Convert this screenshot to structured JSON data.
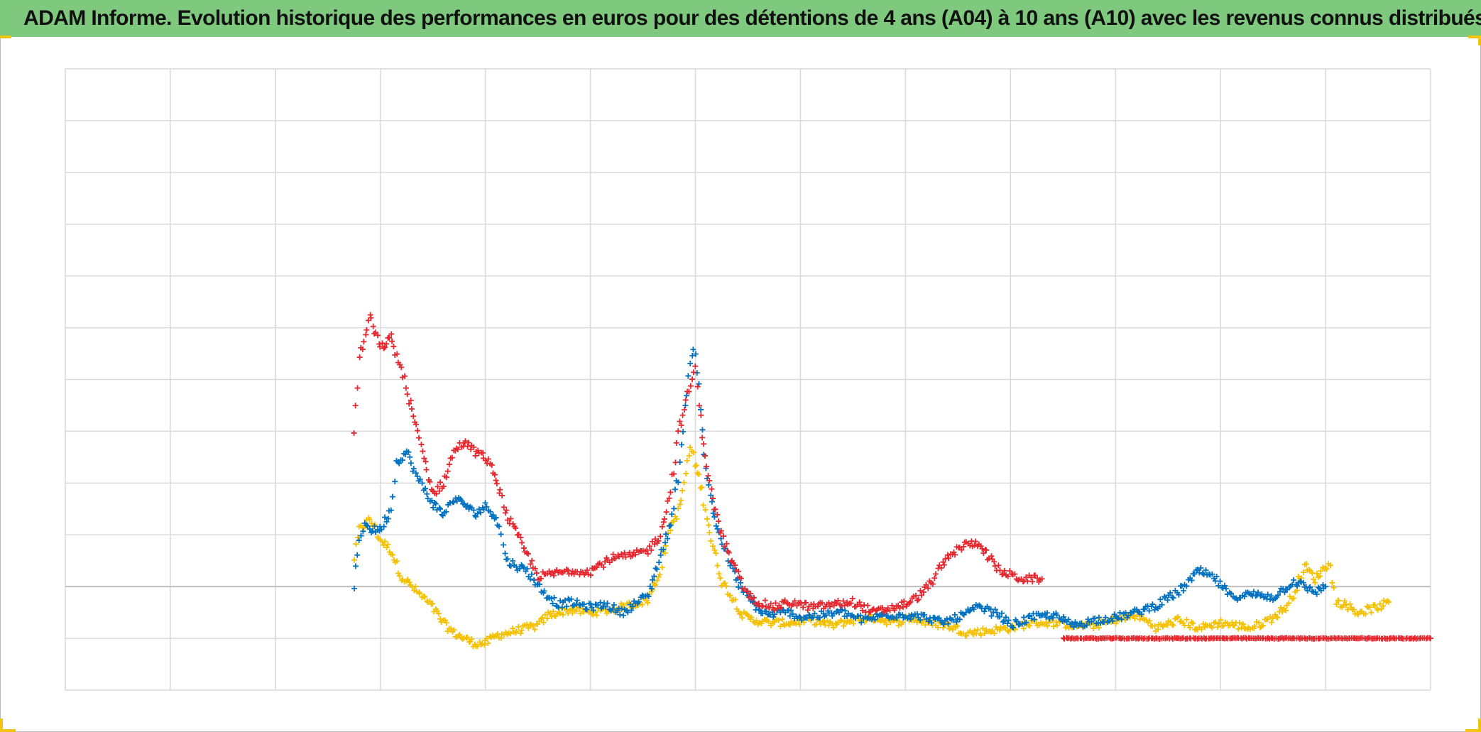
{
  "title": "ADAM Informe. Evolution historique des performances en euros pour des détentions de 4 ans (A04) à 10 ans (A10) avec les revenus connus distribués",
  "colors": {
    "title_bar": "#7fc97f",
    "grid": "#d9d9d9",
    "zero_line": "#bfbfbf",
    "handles": "#f1c40f"
  },
  "chart_data": {
    "type": "scatter",
    "marker": "plus",
    "title": "ADAM Informe. Evolution historique des performances en euros pour des détentions de 4 ans (A04) à 10 ans (A10) avec les revenus connus distribués",
    "xlabel": "",
    "ylabel": "",
    "tick_labels_visible": false,
    "xlim": [
      0,
      13
    ],
    "ylim": [
      -2,
      10
    ],
    "x_gridlines": 13,
    "y_gridlines": 12,
    "grid": true,
    "zero_line_y": 0,
    "legend": "none",
    "series": [
      {
        "color": "#f5c000",
        "points": [
          [
            2.75,
            0.55
          ],
          [
            2.8,
            1.1
          ],
          [
            2.9,
            1.3
          ],
          [
            3.0,
            0.9
          ],
          [
            3.1,
            0.7
          ],
          [
            3.2,
            0.2
          ],
          [
            3.35,
            -0.1
          ],
          [
            3.5,
            -0.4
          ],
          [
            3.6,
            -0.7
          ],
          [
            3.7,
            -0.9
          ],
          [
            3.8,
            -1.0
          ],
          [
            3.9,
            -1.1
          ],
          [
            4.0,
            -1.1
          ],
          [
            4.1,
            -0.95
          ],
          [
            4.3,
            -0.85
          ],
          [
            4.5,
            -0.75
          ],
          [
            4.6,
            -0.55
          ],
          [
            4.7,
            -0.5
          ],
          [
            4.8,
            -0.45
          ],
          [
            5.0,
            -0.5
          ],
          [
            5.2,
            -0.45
          ],
          [
            5.4,
            -0.35
          ],
          [
            5.55,
            -0.25
          ],
          [
            5.65,
            0.2
          ],
          [
            5.75,
            1.1
          ],
          [
            5.85,
            1.5
          ],
          [
            5.95,
            2.7
          ],
          [
            6.05,
            2.0
          ],
          [
            6.15,
            0.9
          ],
          [
            6.25,
            0.1
          ],
          [
            6.35,
            -0.2
          ],
          [
            6.45,
            -0.55
          ],
          [
            6.55,
            -0.65
          ],
          [
            6.7,
            -0.7
          ],
          [
            6.9,
            -0.7
          ],
          [
            7.1,
            -0.65
          ],
          [
            7.3,
            -0.75
          ],
          [
            7.5,
            -0.65
          ],
          [
            7.7,
            -0.6
          ],
          [
            7.9,
            -0.7
          ],
          [
            8.05,
            -0.6
          ],
          [
            8.2,
            -0.7
          ],
          [
            8.4,
            -0.75
          ],
          [
            8.6,
            -0.9
          ],
          [
            8.8,
            -0.85
          ],
          [
            9.0,
            -0.8
          ],
          [
            9.2,
            -0.7
          ],
          [
            9.4,
            -0.7
          ],
          [
            9.6,
            -0.75
          ],
          [
            9.8,
            -0.75
          ],
          [
            10.0,
            -0.65
          ],
          [
            10.2,
            -0.55
          ],
          [
            10.4,
            -0.8
          ],
          [
            10.6,
            -0.65
          ],
          [
            10.8,
            -0.8
          ],
          [
            11.0,
            -0.7
          ],
          [
            11.3,
            -0.8
          ],
          [
            11.5,
            -0.6
          ],
          [
            11.65,
            -0.35
          ],
          [
            11.8,
            0.4
          ],
          [
            11.9,
            0.15
          ],
          [
            12.0,
            0.4
          ],
          [
            12.05,
            0.4
          ],
          [
            12.1,
            -0.3
          ],
          [
            12.2,
            -0.35
          ],
          [
            12.3,
            -0.5
          ],
          [
            12.5,
            -0.4
          ],
          [
            12.6,
            -0.3
          ]
        ]
      },
      {
        "color": "#0070c0",
        "points": [
          [
            2.75,
            0.0
          ],
          [
            2.8,
            0.9
          ],
          [
            2.85,
            1.25
          ],
          [
            2.9,
            1.1
          ],
          [
            3.0,
            1.1
          ],
          [
            3.1,
            1.5
          ],
          [
            3.15,
            2.4
          ],
          [
            3.25,
            2.6
          ],
          [
            3.35,
            2.1
          ],
          [
            3.5,
            1.6
          ],
          [
            3.6,
            1.4
          ],
          [
            3.7,
            1.7
          ],
          [
            3.8,
            1.6
          ],
          [
            3.9,
            1.4
          ],
          [
            4.0,
            1.55
          ],
          [
            4.1,
            1.35
          ],
          [
            4.15,
            1.0
          ],
          [
            4.2,
            0.5
          ],
          [
            4.4,
            0.3
          ],
          [
            4.55,
            -0.1
          ],
          [
            4.7,
            -0.35
          ],
          [
            4.8,
            -0.3
          ],
          [
            5.0,
            -0.4
          ],
          [
            5.15,
            -0.35
          ],
          [
            5.3,
            -0.5
          ],
          [
            5.45,
            -0.3
          ],
          [
            5.55,
            -0.15
          ],
          [
            5.65,
            0.5
          ],
          [
            5.75,
            1.1
          ],
          [
            5.85,
            2.3
          ],
          [
            5.9,
            3.5
          ],
          [
            5.95,
            4.3
          ],
          [
            6.0,
            4.6
          ],
          [
            6.05,
            3.5
          ],
          [
            6.1,
            2.2
          ],
          [
            6.2,
            1.2
          ],
          [
            6.3,
            0.6
          ],
          [
            6.4,
            0.1
          ],
          [
            6.5,
            -0.2
          ],
          [
            6.6,
            -0.45
          ],
          [
            6.7,
            -0.55
          ],
          [
            6.8,
            -0.5
          ],
          [
            6.9,
            -0.5
          ],
          [
            7.0,
            -0.6
          ],
          [
            7.2,
            -0.55
          ],
          [
            7.4,
            -0.5
          ],
          [
            7.6,
            -0.65
          ],
          [
            7.8,
            -0.55
          ],
          [
            8.0,
            -0.55
          ],
          [
            8.2,
            -0.6
          ],
          [
            8.35,
            -0.7
          ],
          [
            8.5,
            -0.6
          ],
          [
            8.7,
            -0.4
          ],
          [
            8.9,
            -0.55
          ],
          [
            9.0,
            -0.75
          ],
          [
            9.2,
            -0.6
          ],
          [
            9.4,
            -0.55
          ],
          [
            9.6,
            -0.75
          ],
          [
            9.8,
            -0.65
          ],
          [
            10.0,
            -0.6
          ],
          [
            10.2,
            -0.5
          ],
          [
            10.4,
            -0.35
          ],
          [
            10.6,
            -0.1
          ],
          [
            10.8,
            0.3
          ],
          [
            10.95,
            0.15
          ],
          [
            11.1,
            -0.2
          ],
          [
            11.3,
            -0.15
          ],
          [
            11.5,
            -0.2
          ],
          [
            11.7,
            0.1
          ],
          [
            11.8,
            0.0
          ],
          [
            11.9,
            -0.1
          ],
          [
            12.0,
            0.0
          ]
        ]
      },
      {
        "color": "#e5282f",
        "points": [
          [
            2.75,
            3.0
          ],
          [
            2.8,
            4.4
          ],
          [
            2.9,
            5.2
          ],
          [
            3.0,
            4.6
          ],
          [
            3.1,
            4.8
          ],
          [
            3.2,
            4.2
          ],
          [
            3.3,
            3.4
          ],
          [
            3.4,
            2.6
          ],
          [
            3.5,
            1.8
          ],
          [
            3.6,
            2.0
          ],
          [
            3.7,
            2.6
          ],
          [
            3.8,
            2.8
          ],
          [
            3.9,
            2.6
          ],
          [
            4.0,
            2.5
          ],
          [
            4.1,
            2.1
          ],
          [
            4.2,
            1.4
          ],
          [
            4.35,
            0.8
          ],
          [
            4.5,
            0.2
          ],
          [
            4.65,
            0.25
          ],
          [
            4.8,
            0.3
          ],
          [
            5.0,
            0.3
          ],
          [
            5.2,
            0.55
          ],
          [
            5.4,
            0.6
          ],
          [
            5.55,
            0.7
          ],
          [
            5.65,
            0.95
          ],
          [
            5.75,
            1.7
          ],
          [
            5.85,
            3.1
          ],
          [
            5.95,
            3.9
          ],
          [
            6.0,
            4.2
          ],
          [
            6.05,
            3.2
          ],
          [
            6.15,
            1.8
          ],
          [
            6.25,
            1.0
          ],
          [
            6.35,
            0.45
          ],
          [
            6.5,
            -0.15
          ],
          [
            6.6,
            -0.3
          ],
          [
            6.75,
            -0.4
          ],
          [
            6.9,
            -0.3
          ],
          [
            7.1,
            -0.4
          ],
          [
            7.3,
            -0.35
          ],
          [
            7.5,
            -0.3
          ],
          [
            7.7,
            -0.5
          ],
          [
            7.9,
            -0.4
          ],
          [
            8.05,
            -0.3
          ],
          [
            8.2,
            -0.05
          ],
          [
            8.4,
            0.55
          ],
          [
            8.55,
            0.8
          ],
          [
            8.7,
            0.85
          ],
          [
            8.8,
            0.55
          ],
          [
            8.9,
            0.3
          ],
          [
            9.1,
            0.15
          ],
          [
            9.3,
            0.15
          ]
        ]
      },
      {
        "color": "#e5282f",
        "points": [
          [
            9.5,
            -1.0
          ],
          [
            10.0,
            -1.0
          ],
          [
            10.5,
            -1.0
          ],
          [
            11.0,
            -1.0
          ],
          [
            11.5,
            -1.0
          ],
          [
            12.0,
            -1.0
          ],
          [
            12.5,
            -1.0
          ],
          [
            13.0,
            -1.0
          ]
        ]
      }
    ]
  }
}
